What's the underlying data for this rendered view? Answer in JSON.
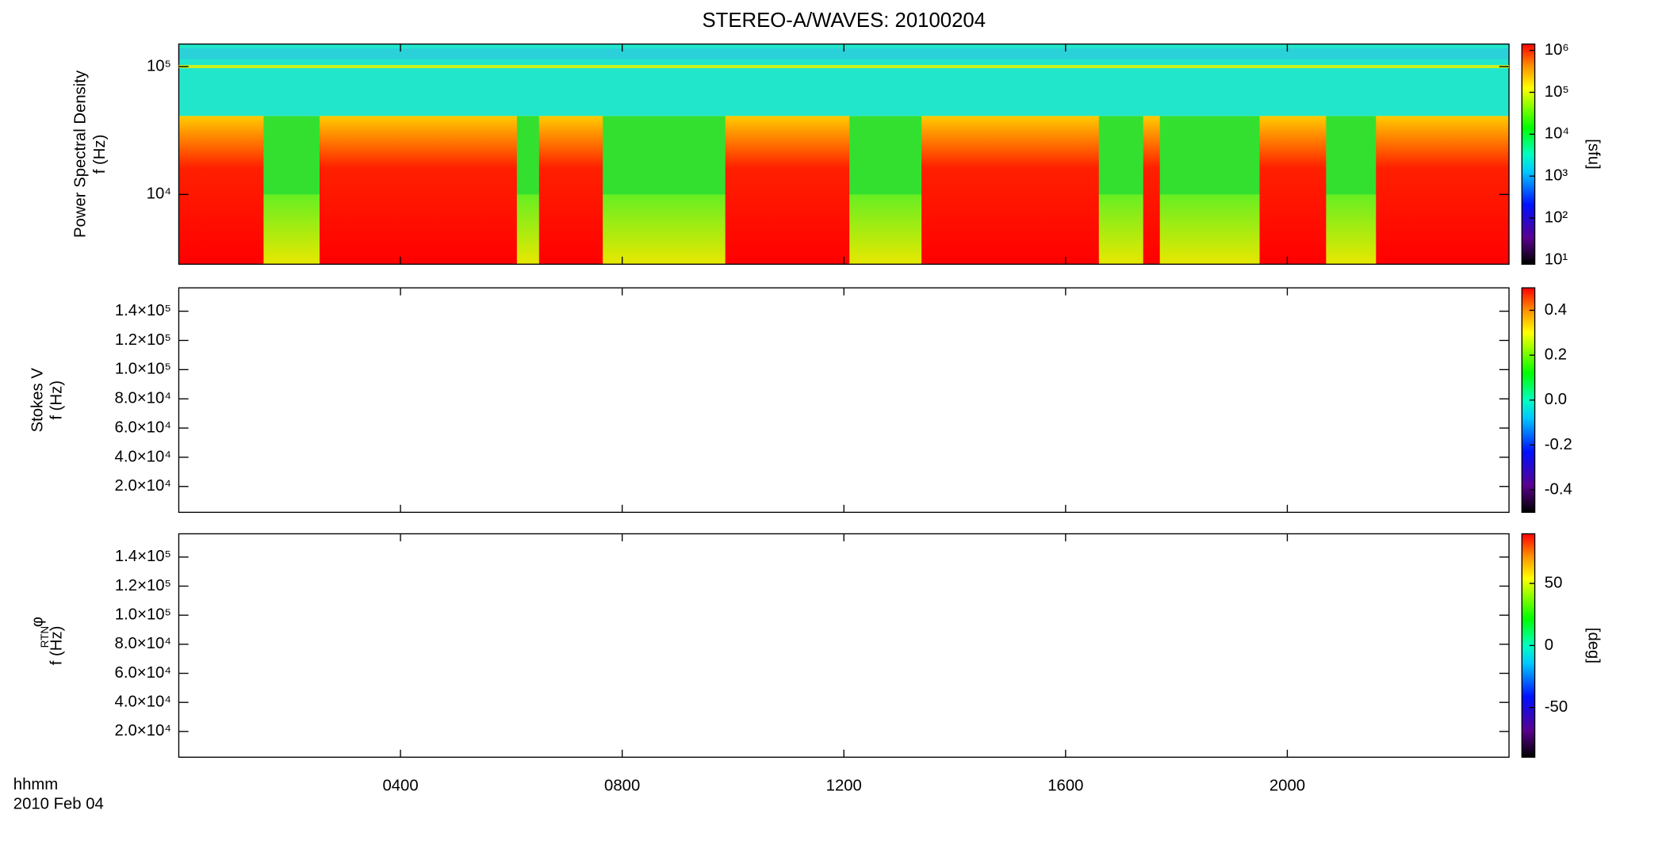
{
  "title": "STEREO-A/WAVES: 20100204",
  "x_axis": {
    "label": "hhmm",
    "date": "2010 Feb 04"
  },
  "chart_data": [
    {
      "type": "spectrogram",
      "ylabel": [
        "Power Spectral Density",
        "f (Hz)"
      ],
      "yscale": "log",
      "xlim": [
        0,
        24
      ],
      "xticks": [
        {
          "value": 4,
          "label": "0400"
        },
        {
          "value": 8,
          "label": "0800"
        },
        {
          "value": 12,
          "label": "1200"
        },
        {
          "value": 16,
          "label": "1600"
        },
        {
          "value": 20,
          "label": "2000"
        }
      ],
      "ylim": [
        2850,
        150000
      ],
      "yticks": [
        {
          "value": 10000,
          "label": "10⁴"
        },
        {
          "value": 100000,
          "label": "10⁵"
        }
      ],
      "bursts": [
        [
          0,
          1.53
        ],
        [
          2.54,
          6.1
        ],
        [
          6.5,
          7.65
        ],
        [
          9.86,
          12.1
        ],
        [
          13.4,
          16.6
        ],
        [
          17.4,
          17.7
        ],
        [
          19.5,
          20.7
        ],
        [
          21.6,
          24
        ]
      ],
      "colorbar": {
        "scale": "log",
        "clim": [
          7.9,
          1420000
        ],
        "label": "[sfu]",
        "ticks": [
          {
            "value": 10,
            "label": "10¹"
          },
          {
            "value": 100,
            "label": "10²"
          },
          {
            "value": 1000,
            "label": "10³"
          },
          {
            "value": 10000,
            "label": "10⁴"
          },
          {
            "value": 100000,
            "label": "10⁵"
          },
          {
            "value": 1000000,
            "label": "10⁶"
          }
        ]
      }
    },
    {
      "type": "spectrogram",
      "ylabel": [
        "Stokes V",
        "f (Hz)"
      ],
      "yscale": "linear",
      "xlim": [
        0,
        24
      ],
      "xticks": [
        {
          "value": 4,
          "label": "0400"
        },
        {
          "value": 8,
          "label": "0800"
        },
        {
          "value": 12,
          "label": "1200"
        },
        {
          "value": 16,
          "label": "1600"
        },
        {
          "value": 20,
          "label": "2000"
        }
      ],
      "ylim": [
        2300,
        156000
      ],
      "yticks": [
        {
          "value": 20000,
          "label": "2.0×10⁴"
        },
        {
          "value": 40000,
          "label": "4.0×10⁴"
        },
        {
          "value": 60000,
          "label": "6.0×10⁴"
        },
        {
          "value": 80000,
          "label": "8.0×10⁴"
        },
        {
          "value": 100000,
          "label": "1.0×10⁵"
        },
        {
          "value": 120000,
          "label": "1.2×10⁵"
        },
        {
          "value": 140000,
          "label": "1.4×10⁵"
        }
      ],
      "colorbar": {
        "scale": "linear",
        "clim": [
          -0.5,
          0.5
        ],
        "ticks": [
          -0.4,
          -0.2,
          {
            "value": 0,
            "label": "0.0"
          },
          0.2,
          0.4
        ]
      }
    },
    {
      "type": "spectrogram",
      "ylabel": [
        "φ",
        "RTN",
        "f (Hz)"
      ],
      "yscale": "linear",
      "xlim": [
        0,
        24
      ],
      "xticks": [
        {
          "value": 4,
          "label": "0400"
        },
        {
          "value": 8,
          "label": "0800"
        },
        {
          "value": 12,
          "label": "1200"
        },
        {
          "value": 16,
          "label": "1600"
        },
        {
          "value": 20,
          "label": "2000"
        }
      ],
      "ylim": [
        2300,
        156000
      ],
      "yticks": [
        {
          "value": 20000,
          "label": "2.0×10⁴"
        },
        {
          "value": 40000,
          "label": "4.0×10⁴"
        },
        {
          "value": 60000,
          "label": "6.0×10⁴"
        },
        {
          "value": 80000,
          "label": "8.0×10⁴"
        },
        {
          "value": 100000,
          "label": "1.0×10⁵"
        },
        {
          "value": 120000,
          "label": "1.2×10⁵"
        },
        {
          "value": 140000,
          "label": "1.4×10⁵"
        }
      ],
      "colorbar": {
        "scale": "linear",
        "clim": [
          -90,
          90
        ],
        "label": "[deg]",
        "ticks": [
          -50,
          0,
          50
        ]
      }
    }
  ]
}
